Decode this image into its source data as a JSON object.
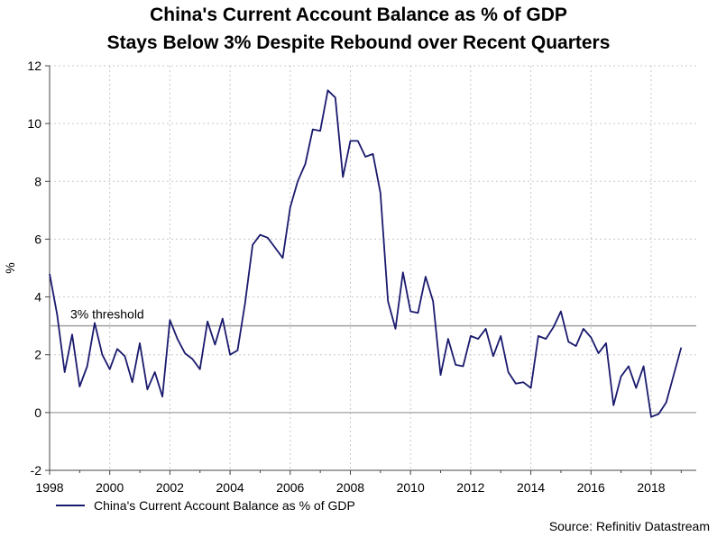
{
  "chart_data": {
    "type": "line",
    "title": "China's Current Account Balance as % of GDP",
    "subtitle": "Stays Below 3% Despite Rebound over Recent Quarters",
    "ylabel": "%",
    "xlabel": "",
    "xlim": [
      1998,
      2019.5
    ],
    "ylim": [
      -2,
      12
    ],
    "x_ticks": [
      1998,
      2000,
      2002,
      2004,
      2006,
      2008,
      2010,
      2012,
      2014,
      2016,
      2018
    ],
    "y_ticks": [
      -2,
      0,
      2,
      4,
      6,
      8,
      10,
      12
    ],
    "grid": true,
    "threshold": {
      "value": 3,
      "label": "3% threshold"
    },
    "series": [
      {
        "name": "China's Current Account Balance as % of GDP",
        "color": "#1a1a6e",
        "x": [
          1998.0,
          1998.25,
          1998.5,
          1998.75,
          1999.0,
          1999.25,
          1999.5,
          1999.75,
          2000.0,
          2000.25,
          2000.5,
          2000.75,
          2001.0,
          2001.25,
          2001.5,
          2001.75,
          2002.0,
          2002.25,
          2002.5,
          2002.75,
          2003.0,
          2003.25,
          2003.5,
          2003.75,
          2004.0,
          2004.25,
          2004.5,
          2004.75,
          2005.0,
          2005.25,
          2005.5,
          2005.75,
          2006.0,
          2006.25,
          2006.5,
          2006.75,
          2007.0,
          2007.25,
          2007.5,
          2007.75,
          2008.0,
          2008.25,
          2008.5,
          2008.75,
          2009.0,
          2009.25,
          2009.5,
          2009.75,
          2010.0,
          2010.25,
          2010.5,
          2010.75,
          2011.0,
          2011.25,
          2011.5,
          2011.75,
          2012.0,
          2012.25,
          2012.5,
          2012.75,
          2013.0,
          2013.25,
          2013.5,
          2013.75,
          2014.0,
          2014.25,
          2014.5,
          2014.75,
          2015.0,
          2015.25,
          2015.5,
          2015.75,
          2016.0,
          2016.25,
          2016.5,
          2016.75,
          2017.0,
          2017.25,
          2017.5,
          2017.75,
          2018.0,
          2018.25,
          2018.5,
          2018.75,
          2019.0
        ],
        "y": [
          4.8,
          3.4,
          1.4,
          2.7,
          0.9,
          1.6,
          3.1,
          2.0,
          1.5,
          2.2,
          1.95,
          1.05,
          2.4,
          0.8,
          1.4,
          0.55,
          3.2,
          2.55,
          2.05,
          1.85,
          1.5,
          3.15,
          2.35,
          3.25,
          2.0,
          2.15,
          3.8,
          5.8,
          6.15,
          6.05,
          5.7,
          5.35,
          7.1,
          8.0,
          8.6,
          9.8,
          9.75,
          11.15,
          10.9,
          8.15,
          9.4,
          9.4,
          8.85,
          8.95,
          7.6,
          3.85,
          2.9,
          4.85,
          3.5,
          3.45,
          4.7,
          3.85,
          1.3,
          2.55,
          1.65,
          1.6,
          2.65,
          2.55,
          2.9,
          1.95,
          2.65,
          1.4,
          1.0,
          1.05,
          0.85,
          2.65,
          2.55,
          2.95,
          3.5,
          2.45,
          2.3,
          2.9,
          2.6,
          2.05,
          2.4,
          0.25,
          1.25,
          1.6,
          0.85,
          1.6,
          -0.15,
          -0.05,
          0.35,
          1.3,
          2.25
        ]
      }
    ],
    "source": "Source: Refinitiv Datastream"
  }
}
